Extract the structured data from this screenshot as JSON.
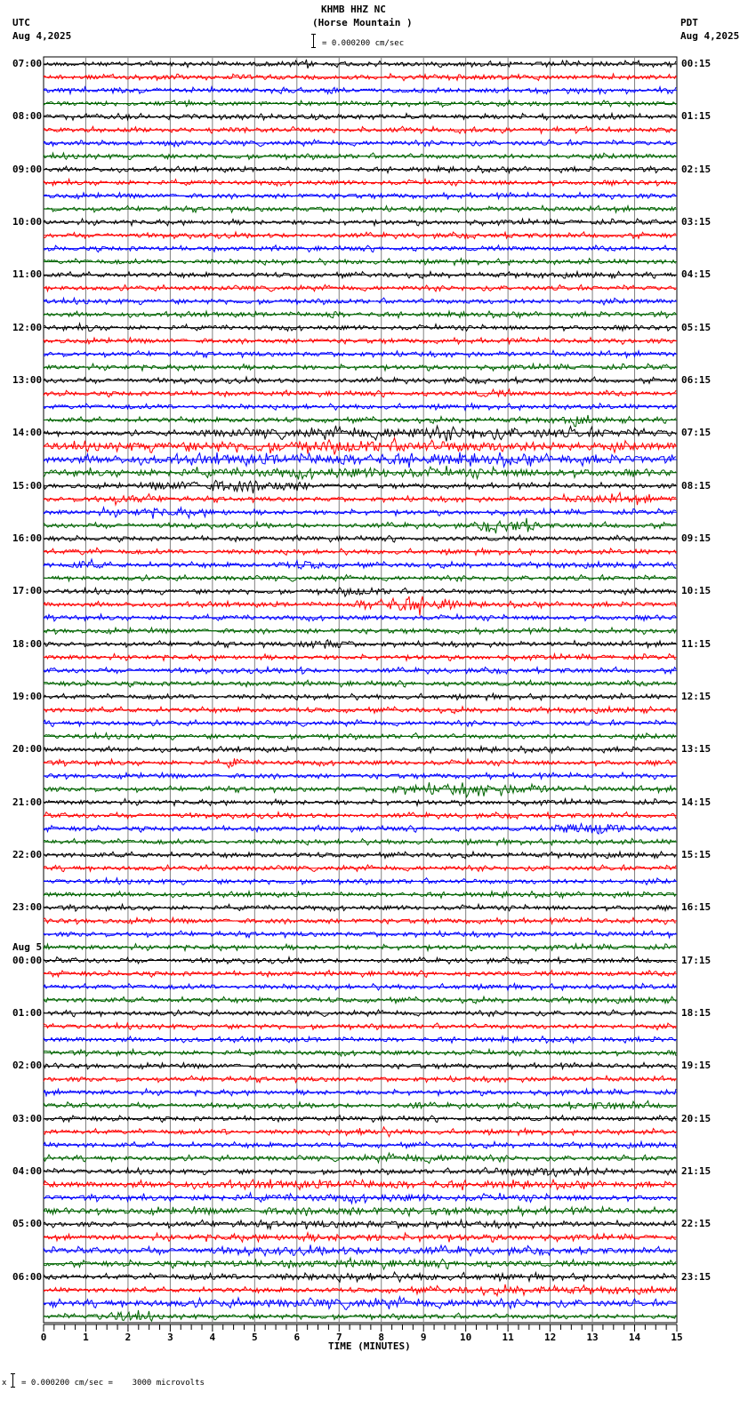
{
  "header": {
    "station": "KHMB HHZ NC",
    "location": "(Horse Mountain )",
    "scale": "= 0.000200 cm/sec",
    "left_tz": "UTC",
    "left_date": "Aug 4,2025",
    "right_tz": "PDT",
    "right_date": "Aug 4,2025"
  },
  "footer": {
    "scale_note": "= 0.000200 cm/sec =    3000 microvolts",
    "x_axis_title": "TIME (MINUTES)"
  },
  "colors": {
    "trace_cycle": [
      "#000000",
      "#ff0000",
      "#0000ff",
      "#006400"
    ],
    "grid": "#808080",
    "background": "#ffffff"
  },
  "chart_data": {
    "type": "line",
    "title": "KHMB HHZ NC (Horse Mountain )",
    "subtitle": "Helicorder seismogram, 24 hours, 15-minute traces",
    "xlabel": "TIME (MINUTES)",
    "ylabel": "",
    "xlim": [
      0,
      15
    ],
    "x_ticks": [
      0,
      1,
      2,
      3,
      4,
      5,
      6,
      7,
      8,
      9,
      10,
      11,
      12,
      13,
      14,
      15
    ],
    "grid": "vertical lines every 1 minute",
    "trace_scale": "0.000200 cm/sec = 3000 microvolts",
    "traces_per_hour": 4,
    "trace_count": 96,
    "left_labels_utc": [
      {
        "row": 0,
        "label": "07:00"
      },
      {
        "row": 4,
        "label": "08:00"
      },
      {
        "row": 8,
        "label": "09:00"
      },
      {
        "row": 12,
        "label": "10:00"
      },
      {
        "row": 16,
        "label": "11:00"
      },
      {
        "row": 20,
        "label": "12:00"
      },
      {
        "row": 24,
        "label": "13:00"
      },
      {
        "row": 28,
        "label": "14:00"
      },
      {
        "row": 32,
        "label": "15:00"
      },
      {
        "row": 36,
        "label": "16:00"
      },
      {
        "row": 40,
        "label": "17:00"
      },
      {
        "row": 44,
        "label": "18:00"
      },
      {
        "row": 48,
        "label": "19:00"
      },
      {
        "row": 52,
        "label": "20:00"
      },
      {
        "row": 56,
        "label": "21:00"
      },
      {
        "row": 60,
        "label": "22:00"
      },
      {
        "row": 64,
        "label": "23:00"
      },
      {
        "row": 68,
        "label": "00:00",
        "date": "Aug 5"
      },
      {
        "row": 72,
        "label": "01:00"
      },
      {
        "row": 76,
        "label": "02:00"
      },
      {
        "row": 80,
        "label": "03:00"
      },
      {
        "row": 84,
        "label": "04:00"
      },
      {
        "row": 88,
        "label": "05:00"
      },
      {
        "row": 92,
        "label": "06:00"
      }
    ],
    "right_labels_pdt": [
      {
        "row": 0,
        "label": "00:15"
      },
      {
        "row": 4,
        "label": "01:15"
      },
      {
        "row": 8,
        "label": "02:15"
      },
      {
        "row": 12,
        "label": "03:15"
      },
      {
        "row": 16,
        "label": "04:15"
      },
      {
        "row": 20,
        "label": "05:15"
      },
      {
        "row": 24,
        "label": "06:15"
      },
      {
        "row": 28,
        "label": "07:15"
      },
      {
        "row": 32,
        "label": "08:15"
      },
      {
        "row": 36,
        "label": "09:15"
      },
      {
        "row": 40,
        "label": "10:15"
      },
      {
        "row": 44,
        "label": "11:15"
      },
      {
        "row": 48,
        "label": "12:15"
      },
      {
        "row": 52,
        "label": "13:15"
      },
      {
        "row": 56,
        "label": "14:15"
      },
      {
        "row": 60,
        "label": "15:15"
      },
      {
        "row": 64,
        "label": "16:15"
      },
      {
        "row": 68,
        "label": "17:15"
      },
      {
        "row": 72,
        "label": "18:15"
      },
      {
        "row": 76,
        "label": "19:15"
      },
      {
        "row": 80,
        "label": "20:15"
      },
      {
        "row": 84,
        "label": "21:15"
      },
      {
        "row": 88,
        "label": "22:15"
      },
      {
        "row": 92,
        "label": "23:15"
      }
    ],
    "bursts": [
      {
        "row": 0,
        "start": 6.0,
        "end": 6.5,
        "amp": 1.6
      },
      {
        "row": 1,
        "start": 10.0,
        "end": 10.6,
        "amp": 1.6
      },
      {
        "row": 19,
        "start": 6.5,
        "end": 7.2,
        "amp": 1.8
      },
      {
        "row": 20,
        "start": 0.8,
        "end": 1.4,
        "amp": 1.8
      },
      {
        "row": 25,
        "start": 10.0,
        "end": 11.2,
        "amp": 1.8
      },
      {
        "row": 27,
        "start": 12.2,
        "end": 13.0,
        "amp": 2.0
      },
      {
        "row": 28,
        "start": 3.5,
        "end": 15.0,
        "amp": 2.6
      },
      {
        "row": 29,
        "start": 0.0,
        "end": 15.0,
        "amp": 2.6
      },
      {
        "row": 30,
        "start": 0.0,
        "end": 15.0,
        "amp": 2.6
      },
      {
        "row": 31,
        "start": 0.0,
        "end": 15.0,
        "amp": 2.2
      },
      {
        "row": 32,
        "start": 2.5,
        "end": 6.5,
        "amp": 2.8
      },
      {
        "row": 33,
        "start": 0.8,
        "end": 3.0,
        "amp": 2.0
      },
      {
        "row": 33,
        "start": 12.0,
        "end": 15.0,
        "amp": 2.0
      },
      {
        "row": 34,
        "start": 1.0,
        "end": 4.5,
        "amp": 2.0
      },
      {
        "row": 35,
        "start": 10.3,
        "end": 11.8,
        "amp": 3.0
      },
      {
        "row": 37,
        "start": 0.5,
        "end": 1.5,
        "amp": 1.6
      },
      {
        "row": 38,
        "start": 0.5,
        "end": 1.5,
        "amp": 2.0
      },
      {
        "row": 38,
        "start": 5.5,
        "end": 7.0,
        "amp": 2.0
      },
      {
        "row": 40,
        "start": 6.5,
        "end": 8.5,
        "amp": 1.8
      },
      {
        "row": 41,
        "start": 7.4,
        "end": 9.8,
        "amp": 3.6
      },
      {
        "row": 44,
        "start": 6.0,
        "end": 7.3,
        "amp": 2.4
      },
      {
        "row": 46,
        "start": 5.8,
        "end": 6.4,
        "amp": 1.8
      },
      {
        "row": 53,
        "start": 4.3,
        "end": 4.8,
        "amp": 2.4
      },
      {
        "row": 55,
        "start": 8.0,
        "end": 12.2,
        "amp": 2.6
      },
      {
        "row": 58,
        "start": 12.1,
        "end": 13.8,
        "amp": 3.0
      },
      {
        "row": 81,
        "start": 4.2,
        "end": 4.5,
        "amp": 1.8
      },
      {
        "row": 81,
        "start": 7.0,
        "end": 8.6,
        "amp": 1.8
      },
      {
        "row": 79,
        "start": 8.6,
        "end": 9.0,
        "amp": 2.0
      },
      {
        "row": 79,
        "start": 12.2,
        "end": 14.8,
        "amp": 1.8
      },
      {
        "row": 83,
        "start": 7.0,
        "end": 11.0,
        "amp": 1.8
      },
      {
        "row": 84,
        "start": 10.0,
        "end": 14.0,
        "amp": 2.2
      },
      {
        "row": 85,
        "start": 0.0,
        "end": 15.0,
        "amp": 1.9
      },
      {
        "row": 86,
        "start": 0.0,
        "end": 15.0,
        "amp": 1.7
      },
      {
        "row": 87,
        "start": 0.0,
        "end": 15.0,
        "amp": 1.8
      },
      {
        "row": 88,
        "start": 0.0,
        "end": 15.0,
        "amp": 1.6
      },
      {
        "row": 89,
        "start": 0.0,
        "end": 15.0,
        "amp": 1.6
      },
      {
        "row": 90,
        "start": 0.0,
        "end": 15.0,
        "amp": 1.8
      },
      {
        "row": 91,
        "start": 0.0,
        "end": 15.0,
        "amp": 1.7
      },
      {
        "row": 92,
        "start": 0.0,
        "end": 15.0,
        "amp": 1.6
      },
      {
        "row": 93,
        "start": 8.0,
        "end": 15.0,
        "amp": 1.8
      },
      {
        "row": 94,
        "start": 0.0,
        "end": 15.0,
        "amp": 2.0
      },
      {
        "row": 95,
        "start": 1.2,
        "end": 2.6,
        "amp": 2.4
      }
    ]
  }
}
